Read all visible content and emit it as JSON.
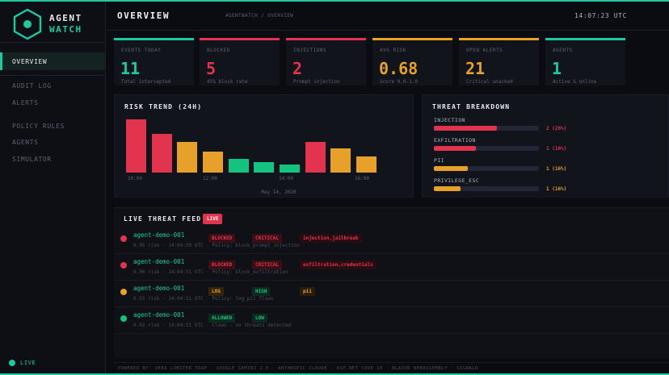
{
  "brand": {
    "line1": "AGENT",
    "line2": "WATCH",
    "accent": "#1fc9a0",
    "icon": "hexagon-logo-icon"
  },
  "nav": {
    "items": [
      {
        "label": "OVERVIEW",
        "active": true
      },
      {
        "label": "AUDIT LOG",
        "active": false
      },
      {
        "label": "ALERTS",
        "active": false
      },
      {
        "label": "POLICY RULES",
        "active": false
      },
      {
        "label": "AGENTS",
        "active": false
      },
      {
        "label": "SIMULATOR",
        "active": false
      }
    ],
    "status": "LIVE"
  },
  "header": {
    "title": "OVERVIEW",
    "breadcrumb": "AGENTWATCH / OVERVIEW",
    "clock": "14:07:23 UTC"
  },
  "stats": [
    {
      "label": "EVENTS TODAY",
      "value": "11",
      "sub": "Total intercepted",
      "color": "#1fc9a0"
    },
    {
      "label": "BLOCKED",
      "value": "5",
      "sub": "45% block rate",
      "color": "#e2344f"
    },
    {
      "label": "INJECTIONS",
      "value": "2",
      "sub": "Prompt injection",
      "color": "#e2344f"
    },
    {
      "label": "AVG RISK",
      "value": "0.68",
      "sub": "Score 0.0-1.0",
      "color": "#e7a12a"
    },
    {
      "label": "OPEN ALERTS",
      "value": "21",
      "sub": "Critical unacked",
      "color": "#e7a12a"
    },
    {
      "label": "AGENTS",
      "value": "1",
      "sub": "Active & online",
      "color": "#1fc9a0"
    }
  ],
  "risk_trend": {
    "title": "RISK TREND (24H)",
    "date": "May 14, 2026",
    "ticks": [
      "10:00",
      "12:00",
      "14:00",
      "16:00"
    ]
  },
  "chart_data": {
    "type": "bar",
    "title": "RISK TREND (24H)",
    "x_ticks": [
      "10:00",
      "12:00",
      "14:00",
      "16:00"
    ],
    "values": [
      1.0,
      0.72,
      0.58,
      0.4,
      0.26,
      0.19,
      0.15,
      0.58,
      0.45,
      0.3
    ],
    "colors": [
      "#e2344f",
      "#e2344f",
      "#e7a12a",
      "#e7a12a",
      "#15c27f",
      "#15c27f",
      "#15c27f",
      "#e2344f",
      "#e7a12a",
      "#e7a12a"
    ],
    "xlabel": "May 14, 2026",
    "ylabel": "",
    "grid": false
  },
  "breakdown": {
    "title": "THREAT BREAKDOWN",
    "items": [
      {
        "label": "INJECTION",
        "value": "2 (28%)",
        "fraction": 0.6,
        "color": "#e2344f"
      },
      {
        "label": "EXFILTRATION",
        "value": "1 (16%)",
        "fraction": 0.4,
        "color": "#e2344f"
      },
      {
        "label": "PII",
        "value": "1 (16%)",
        "fraction": 0.32,
        "color": "#e7a12a"
      },
      {
        "label": "PRIVILEGE_ESC",
        "value": "1 (16%)",
        "fraction": 0.25,
        "color": "#e7a12a"
      }
    ]
  },
  "feed": {
    "title": "LIVE THREAT FEED",
    "badge": "LIVE",
    "rows": [
      {
        "agent": "agent-demo-001",
        "meta": "0.95 risk · 14:04:50 UTC · Policy: block_prompt_injection",
        "dot": "#e2344f",
        "tags": [
          {
            "text": "BLOCKED",
            "fg": "#e2344f",
            "bg": "#3a0f16"
          },
          {
            "text": "CRITICAL",
            "fg": "#e2344f",
            "bg": "#3a0f16"
          },
          {
            "text": "injection,jailbreak",
            "fg": "#e2344f",
            "bg": "#2a0d12"
          }
        ]
      },
      {
        "agent": "agent-demo-001",
        "meta": "0.90 risk · 14:04:51 UTC · Policy: block_exfiltration",
        "dot": "#e2344f",
        "tags": [
          {
            "text": "BLOCKED",
            "fg": "#e2344f",
            "bg": "#3a0f16"
          },
          {
            "text": "CRITICAL",
            "fg": "#e2344f",
            "bg": "#3a0f16"
          },
          {
            "text": "exfiltration,credentials",
            "fg": "#e2344f",
            "bg": "#2a0d12"
          }
        ]
      },
      {
        "agent": "agent-demo-001",
        "meta": "0.55 risk · 14:04:51 UTC · Policy: log_pii_flows",
        "dot": "#e7a12a",
        "tags": [
          {
            "text": "LOG",
            "fg": "#e7a12a",
            "bg": "#33230b"
          },
          {
            "text": "HIGH",
            "fg": "#15c27f",
            "bg": "#0d2a1f"
          },
          {
            "text": "pii",
            "fg": "#e7a12a",
            "bg": "#2a1d0c"
          }
        ]
      },
      {
        "agent": "agent-demo-001",
        "meta": "0.02 risk · 14:04:51 UTC · Clean — no threats detected",
        "dot": "#15c27f",
        "tags": [
          {
            "text": "ALLOWED",
            "fg": "#15c27f",
            "bg": "#0d2a1f"
          },
          {
            "text": "LOW",
            "fg": "#15c27f",
            "bg": "#0d2a1f"
          }
        ]
      }
    ]
  },
  "footer": "POWERED BY: VEEA LOBSTER TRAP · GOOGLE GEMINI 2.0 · ANTHROPIC CLAUDE · ASP.NET CORE 10 · BLAZOR WEBASSEMBLY · SIGNALR"
}
